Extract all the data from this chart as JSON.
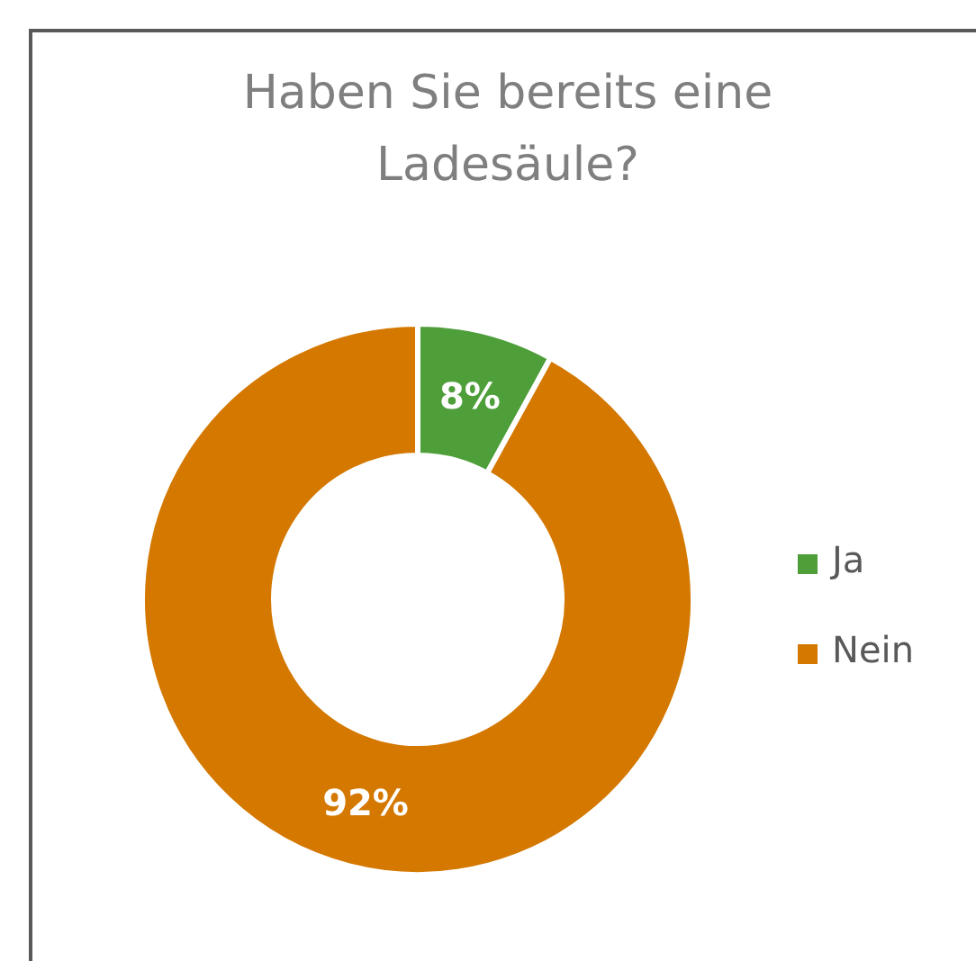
{
  "chart_data": {
    "type": "donut",
    "title": "Haben Sie bereits eine Ladesäule?",
    "categories": [
      "Ja",
      "Nein"
    ],
    "values": [
      8,
      92
    ],
    "colors": [
      "#4e9e3a",
      "#d47800"
    ],
    "value_labels": [
      "8%",
      "92%"
    ],
    "legend": "right"
  }
}
